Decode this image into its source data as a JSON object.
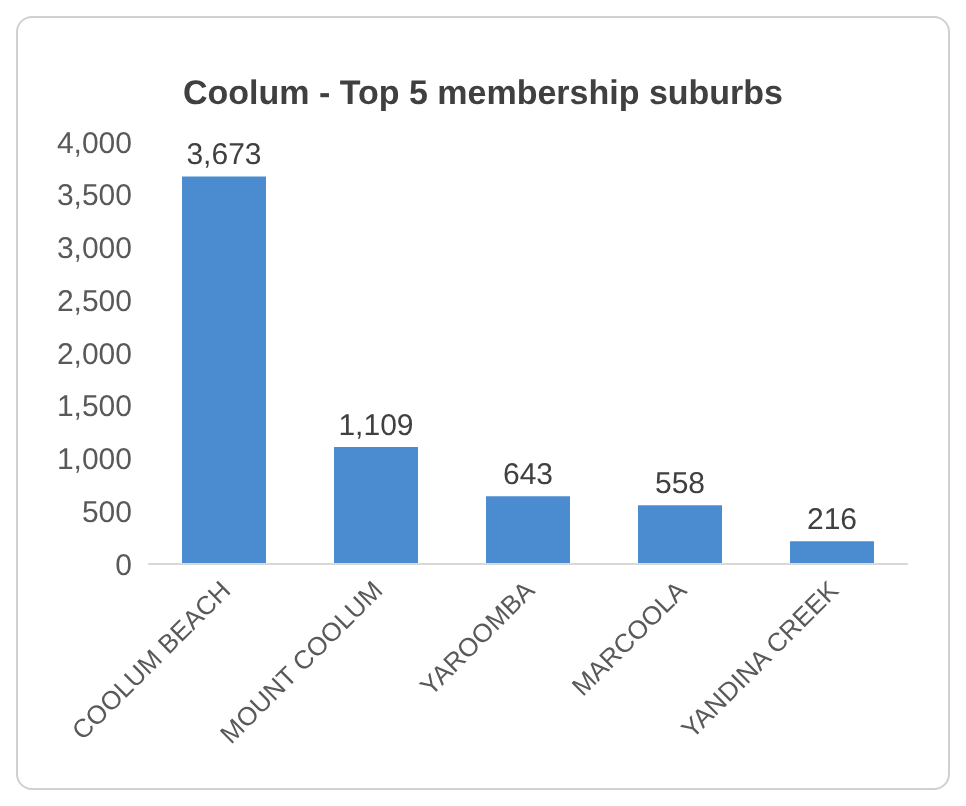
{
  "chart_data": {
    "type": "bar",
    "title": "Coolum - Top 5 membership suburbs",
    "categories": [
      "COOLUM BEACH",
      "MOUNT COOLUM",
      "YAROOMBA",
      "MARCOOLA",
      "YANDINA CREEK"
    ],
    "values": [
      3673,
      1109,
      643,
      558,
      216
    ],
    "value_labels": [
      "3,673",
      "1,109",
      "643",
      "558",
      "216"
    ],
    "color": "#4a8ccf",
    "ylim": [
      0,
      4000
    ],
    "yticks": [
      {
        "value": 0,
        "label": "0"
      },
      {
        "value": 500,
        "label": "500"
      },
      {
        "value": 1000,
        "label": "1,000"
      },
      {
        "value": 1500,
        "label": "1,500"
      },
      {
        "value": 2000,
        "label": "2,000"
      },
      {
        "value": 2500,
        "label": "2,500"
      },
      {
        "value": 3000,
        "label": "3,000"
      },
      {
        "value": 3500,
        "label": "3,500"
      },
      {
        "value": 4000,
        "label": "4,000"
      }
    ],
    "grid": false,
    "legend": false
  }
}
